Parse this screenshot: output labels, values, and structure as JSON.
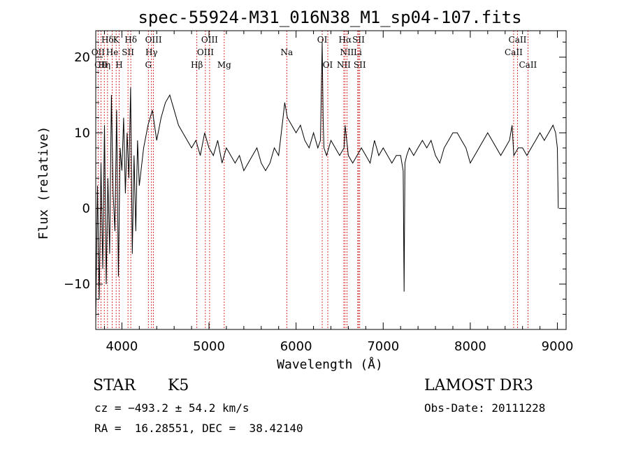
{
  "chart_data": {
    "type": "line",
    "title": "spec-55924-M31_016N38_M1_sp04-107.fits",
    "xlabel": "Wavelength (Å)",
    "ylabel": "Flux (relative)",
    "xlim": [
      3700,
      9100
    ],
    "ylim": [
      -16,
      23.5
    ],
    "xticks": [
      "4000",
      "5000",
      "6000",
      "7000",
      "8000",
      "9000"
    ],
    "yticks": [
      "−10",
      "0",
      "10",
      "20"
    ],
    "x_tick_values": [
      4000,
      5000,
      6000,
      7000,
      8000,
      9000
    ],
    "y_tick_values": [
      -10,
      0,
      10,
      20
    ],
    "x_minor_step": 200,
    "y_minor_step": 2,
    "grid": false,
    "series": [
      {
        "x": [
          3700,
          3720,
          3740,
          3760,
          3780,
          3800,
          3820,
          3840,
          3860,
          3880,
          3900,
          3920,
          3940,
          3960,
          3980,
          4000,
          4020,
          4040,
          4060,
          4080,
          4100,
          4120,
          4140,
          4160,
          4180,
          4200,
          4250,
          4300,
          4350,
          4400,
          4450,
          4500,
          4550,
          4600,
          4650,
          4700,
          4750,
          4800,
          4850,
          4900,
          4950,
          5000,
          5050,
          5100,
          5150,
          5200,
          5250,
          5300,
          5350,
          5400,
          5450,
          5500,
          5550,
          5600,
          5650,
          5700,
          5750,
          5800,
          5850,
          5870,
          5900,
          5950,
          6000,
          6050,
          6100,
          6150,
          6200,
          6250,
          6280,
          6300,
          6310,
          6320,
          6350,
          6400,
          6450,
          6500,
          6550,
          6563,
          6600,
          6650,
          6700,
          6750,
          6800,
          6850,
          6900,
          6950,
          7000,
          7050,
          7100,
          7150,
          7200,
          7230,
          7240,
          7250,
          7270,
          7300,
          7350,
          7400,
          7450,
          7500,
          7550,
          7600,
          7650,
          7700,
          7750,
          7800,
          7850,
          7900,
          7950,
          8000,
          8050,
          8100,
          8150,
          8200,
          8250,
          8300,
          8350,
          8400,
          8450,
          8480,
          8500,
          8550,
          8600,
          8650,
          8700,
          8750,
          8800,
          8850,
          8900,
          8950,
          8980,
          9000,
          9010
        ],
        "values": [
          -15,
          3,
          -12,
          6,
          -8,
          11,
          -10,
          4,
          -6,
          15,
          2,
          -3,
          13,
          -9,
          8,
          5,
          12,
          2,
          10,
          4,
          16,
          -6,
          7,
          -3,
          9,
          3,
          8,
          11,
          13,
          9,
          12,
          14,
          15,
          13,
          11,
          10,
          9,
          8,
          9,
          7,
          10,
          8,
          7,
          9,
          6,
          8,
          7,
          6,
          7,
          5,
          6,
          7,
          8,
          6,
          5,
          6,
          8,
          7,
          12,
          14,
          12,
          11,
          10,
          11,
          9,
          8,
          10,
          8,
          9,
          22,
          12,
          8,
          7,
          9,
          8,
          7,
          8,
          11,
          7,
          6,
          7,
          8,
          7,
          6,
          9,
          7,
          8,
          7,
          6,
          7,
          7,
          5,
          -11,
          6,
          7,
          8,
          7,
          8,
          9,
          8,
          9,
          7,
          6,
          8,
          9,
          10,
          10,
          9,
          8,
          6,
          7,
          8,
          9,
          10,
          9,
          8,
          7,
          8,
          9,
          11,
          7,
          8,
          8,
          7,
          8,
          9,
          10,
          9,
          10,
          11,
          10,
          8,
          0
        ]
      }
    ],
    "lines": [
      {
        "name": "Hδ",
        "x": 3835,
        "row": 0
      },
      {
        "name": "K",
        "x": 3934,
        "row": 0
      },
      {
        "name": "Hδ",
        "x": 4102,
        "row": 0
      },
      {
        "name": "OIII",
        "x": 4363,
        "row": 0
      },
      {
        "name": "OIII",
        "x": 5007,
        "row": 0
      },
      {
        "name": "OI",
        "x": 6300,
        "row": 0
      },
      {
        "name": "Hα",
        "x": 6563,
        "row": 0
      },
      {
        "name": "SII",
        "x": 6717,
        "row": 0
      },
      {
        "name": "CaII",
        "x": 8542,
        "row": 0
      },
      {
        "name": "OII",
        "x": 3727,
        "row": 1
      },
      {
        "name": "He",
        "x": 3889,
        "row": 1
      },
      {
        "name": "SII",
        "x": 4070,
        "row": 1
      },
      {
        "name": "Hγ",
        "x": 4340,
        "row": 1
      },
      {
        "name": "OIII",
        "x": 4959,
        "row": 1
      },
      {
        "name": "Na",
        "x": 5893,
        "row": 1
      },
      {
        "name": "NII",
        "x": 6584,
        "row": 1
      },
      {
        "name": "Li",
        "x": 6708,
        "row": 1
      },
      {
        "name": "CaII",
        "x": 8498,
        "row": 1
      },
      {
        "name": "CII",
        "x": 3760,
        "row": 2
      },
      {
        "name": "Hη",
        "x": 3798,
        "row": 2
      },
      {
        "name": "H",
        "x": 3969,
        "row": 2
      },
      {
        "name": "G",
        "x": 4304,
        "row": 2
      },
      {
        "name": "Hβ",
        "x": 4861,
        "row": 2
      },
      {
        "name": "Mg",
        "x": 5175,
        "row": 2
      },
      {
        "name": "OI",
        "x": 6364,
        "row": 2
      },
      {
        "name": "NII",
        "x": 6548,
        "row": 2
      },
      {
        "name": "SII",
        "x": 6731,
        "row": 2
      },
      {
        "name": "CaII",
        "x": 8662,
        "row": 2
      }
    ]
  },
  "info": {
    "object_class": "STAR",
    "subclass": "K5",
    "survey": "LAMOST DR3",
    "cz": "cz = −493.2 ± 54.2 km/s",
    "obs_date": "Obs-Date: 20111228",
    "coords": "RA =  16.28551, DEC =  38.42140"
  }
}
